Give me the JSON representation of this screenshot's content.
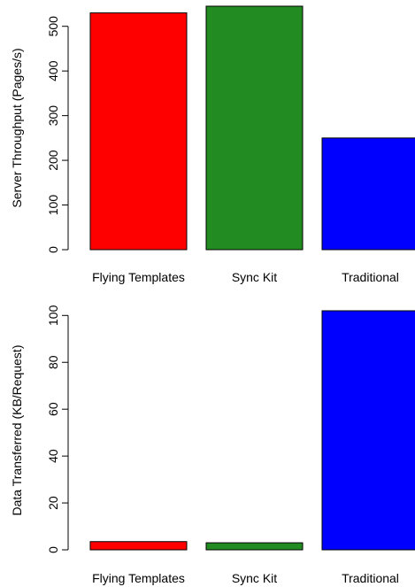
{
  "chart_data": [
    {
      "type": "bar",
      "categories": [
        "Flying Templates",
        "Sync Kit",
        "Traditional"
      ],
      "values": [
        530,
        545,
        250
      ],
      "colors": [
        "#ff0000",
        "#228b22",
        "#0000ff"
      ],
      "xlabel": "",
      "ylabel": "Server Throughput (Pages/s)",
      "ylim": [
        0,
        545
      ],
      "yticks": [
        0,
        100,
        200,
        300,
        400,
        500
      ],
      "grid": false,
      "legend": "none"
    },
    {
      "type": "bar",
      "categories": [
        "Flying Templates",
        "Sync Kit",
        "Traditional"
      ],
      "values": [
        3.5,
        3,
        102
      ],
      "colors": [
        "#ff0000",
        "#228b22",
        "#0000ff"
      ],
      "xlabel": "",
      "ylabel": "Data Transferred (KB/Request)",
      "ylim": [
        0,
        102
      ],
      "yticks": [
        0,
        20,
        40,
        60,
        80,
        100
      ],
      "grid": false,
      "legend": "none"
    }
  ]
}
